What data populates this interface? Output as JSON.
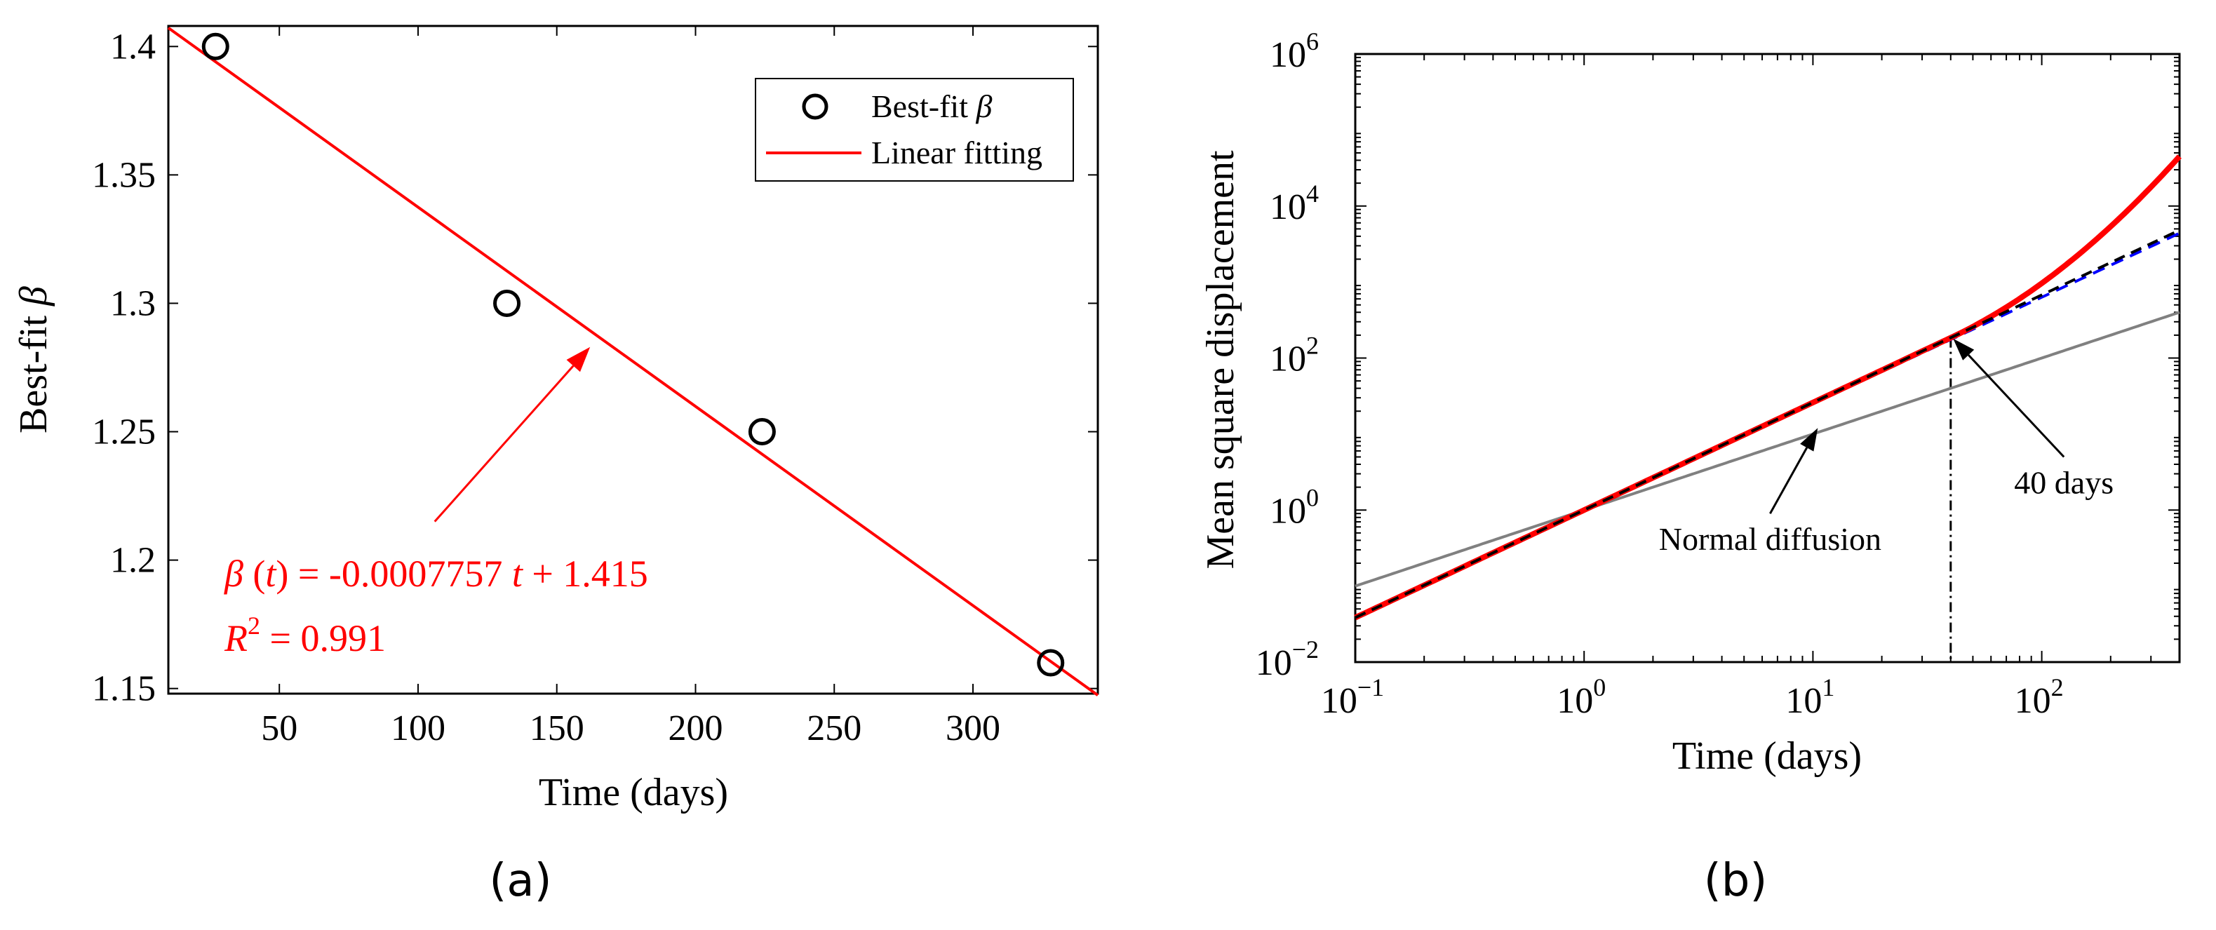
{
  "chart_data": [
    {
      "type": "scatter",
      "caption": "(a)",
      "xlabel": "Time (days)",
      "ylabel_text": "Best-fit ",
      "ylabel_symbol": "β",
      "xlim": [
        10,
        345
      ],
      "ylim": [
        1.148,
        1.408
      ],
      "xticks": [
        50,
        100,
        150,
        200,
        250,
        300
      ],
      "xtick_labels": [
        "50",
        "100",
        "150",
        "200",
        "250",
        "300"
      ],
      "yticks": [
        1.15,
        1.2,
        1.25,
        1.3,
        1.35,
        1.4
      ],
      "ytick_labels": [
        "1.15",
        "1.2",
        "1.25",
        "1.3",
        "1.35",
        "1.4"
      ],
      "series": [
        {
          "name": "Best-fit β",
          "marker": "circle",
          "color": "#000000",
          "x": [
            27,
            132,
            224,
            328
          ],
          "y": [
            1.4,
            1.3,
            1.25,
            1.16
          ]
        },
        {
          "name": "Linear fitting",
          "kind": "line",
          "color": "#ff0000",
          "slope": -0.0007757,
          "intercept": 1.415
        }
      ],
      "legend": {
        "position": "top-right",
        "entry1_text": "Best-fit ",
        "entry1_symbol": "β",
        "entry2_text": "Linear fitting"
      },
      "annotation": {
        "eq_beta": "β",
        "eq_t_paren_open": " (",
        "eq_t": "t",
        "eq_mid": ") = -0.0007757 ",
        "eq_t2": "t",
        "eq_tail": " + 1.415",
        "r2_R": "R",
        "r2_exp": "2",
        "r2_tail": " = 0.991",
        "arrow_tip": {
          "x": 162,
          "y": 1.283
        },
        "arrow_tail": {
          "x": 106,
          "y": 1.215
        },
        "color": "#ff0000"
      }
    },
    {
      "type": "line",
      "caption": "(b)",
      "xlabel": "Time (days)",
      "ylabel": "Mean square displacement",
      "xscale": "log",
      "yscale": "log",
      "xlim": [
        0.1,
        400
      ],
      "ylim": [
        0.01,
        1000000
      ],
      "xticks": [
        0.1,
        1,
        10,
        100
      ],
      "xtick_base": [
        "10",
        "10",
        "10",
        "10"
      ],
      "xtick_exp": [
        "−1",
        "0",
        "1",
        "2"
      ],
      "yticks": [
        0.01,
        1,
        100,
        10000,
        1000000
      ],
      "ytick_base": [
        "10",
        "10",
        "10",
        "10",
        "10"
      ],
      "ytick_exp": [
        "−2",
        "0",
        "2",
        "4",
        "6"
      ],
      "series": [
        {
          "name": "Normal diffusion",
          "style": "solid",
          "color": "#808080",
          "exponent": 1.0,
          "coef": 1.0
        },
        {
          "name": "Blue dashed power law",
          "style": "dashed",
          "color": "#0000ff",
          "exponent": 1.4,
          "coef": 1.0
        },
        {
          "name": "Black dashed power law",
          "style": "dashed",
          "color": "#000000",
          "exponent": 1.415,
          "coef": 1.0
        },
        {
          "name": "MSD",
          "style": "solid",
          "color": "#ff0000",
          "exponent": 1.415,
          "coef": 1.0,
          "upturn_start": 40,
          "end_value": 45000
        }
      ],
      "vline": {
        "x": 40,
        "style": "dashdot",
        "color": "#000000"
      },
      "annotations": [
        {
          "text": "40 days",
          "arrow_tip": {
            "x": 41,
            "y": 180
          },
          "arrow_tail": {
            "x": 125,
            "y": 5
          }
        },
        {
          "text": "Normal diffusion",
          "arrow_tip": {
            "x": 10.5,
            "y": 12
          },
          "arrow_tail": {
            "x": 6.5,
            "y": 0.9
          }
        }
      ]
    }
  ]
}
